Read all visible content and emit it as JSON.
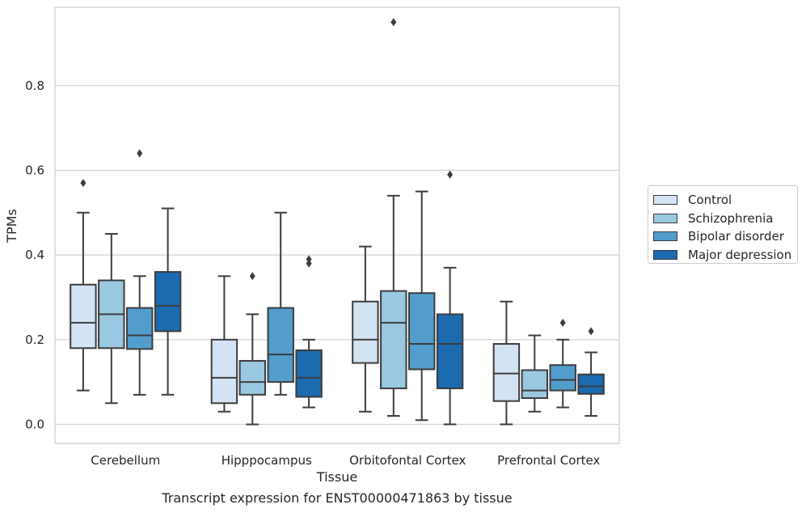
{
  "chart_data": {
    "type": "box",
    "categories": [
      "Cerebellum",
      "Hipppocampus",
      "Orbitofontal Cortex",
      "Prefrontal Cortex"
    ],
    "xlabel": "Tissue",
    "ylabel": "TPMs",
    "ylim": [
      -0.045,
      0.985
    ],
    "yticks": [
      0.0,
      0.2,
      0.4,
      0.6,
      0.8
    ],
    "ytick_labels": [
      "0.0",
      "0.2",
      "0.4",
      "0.6",
      "0.8"
    ],
    "grid": true,
    "legend_position": "right",
    "series": [
      {
        "name": "Control",
        "color": "#d3e3f3",
        "boxes": [
          {
            "whisker_low": 0.08,
            "q1": 0.18,
            "median": 0.24,
            "q3": 0.33,
            "whisker_high": 0.5,
            "outliers": [
              0.57
            ]
          },
          {
            "whisker_low": 0.03,
            "q1": 0.05,
            "median": 0.11,
            "q3": 0.2,
            "whisker_high": 0.35,
            "outliers": []
          },
          {
            "whisker_low": 0.03,
            "q1": 0.145,
            "median": 0.2,
            "q3": 0.29,
            "whisker_high": 0.42,
            "outliers": []
          },
          {
            "whisker_low": 0.0,
            "q1": 0.055,
            "median": 0.12,
            "q3": 0.19,
            "whisker_high": 0.29,
            "outliers": []
          }
        ]
      },
      {
        "name": "Schizophrenia",
        "color": "#9ac8e0",
        "boxes": [
          {
            "whisker_low": 0.05,
            "q1": 0.18,
            "median": 0.26,
            "q3": 0.34,
            "whisker_high": 0.45,
            "outliers": []
          },
          {
            "whisker_low": 0.0,
            "q1": 0.07,
            "median": 0.1,
            "q3": 0.15,
            "whisker_high": 0.26,
            "outliers": [
              0.35
            ]
          },
          {
            "whisker_low": 0.02,
            "q1": 0.085,
            "median": 0.24,
            "q3": 0.315,
            "whisker_high": 0.54,
            "outliers": [
              0.95
            ]
          },
          {
            "whisker_low": 0.03,
            "q1": 0.062,
            "median": 0.08,
            "q3": 0.128,
            "whisker_high": 0.21,
            "outliers": []
          }
        ]
      },
      {
        "name": "Bipolar disorder",
        "color": "#529dcc",
        "boxes": [
          {
            "whisker_low": 0.07,
            "q1": 0.178,
            "median": 0.21,
            "q3": 0.275,
            "whisker_high": 0.35,
            "outliers": [
              0.64
            ]
          },
          {
            "whisker_low": 0.07,
            "q1": 0.1,
            "median": 0.165,
            "q3": 0.275,
            "whisker_high": 0.5,
            "outliers": []
          },
          {
            "whisker_low": 0.01,
            "q1": 0.13,
            "median": 0.19,
            "q3": 0.31,
            "whisker_high": 0.55,
            "outliers": []
          },
          {
            "whisker_low": 0.04,
            "q1": 0.08,
            "median": 0.105,
            "q3": 0.14,
            "whisker_high": 0.2,
            "outliers": [
              0.24
            ]
          }
        ]
      },
      {
        "name": "Major depression",
        "color": "#1c6aaf",
        "boxes": [
          {
            "whisker_low": 0.07,
            "q1": 0.22,
            "median": 0.28,
            "q3": 0.36,
            "whisker_high": 0.51,
            "outliers": []
          },
          {
            "whisker_low": 0.04,
            "q1": 0.065,
            "median": 0.11,
            "q3": 0.175,
            "whisker_high": 0.2,
            "outliers": [
              0.38,
              0.39
            ]
          },
          {
            "whisker_low": 0.0,
            "q1": 0.085,
            "median": 0.19,
            "q3": 0.26,
            "whisker_high": 0.37,
            "outliers": [
              0.59
            ]
          },
          {
            "whisker_low": 0.02,
            "q1": 0.072,
            "median": 0.09,
            "q3": 0.118,
            "whisker_high": 0.17,
            "outliers": [
              0.22
            ]
          }
        ]
      }
    ]
  },
  "caption": "Transcript expression for ENST00000471863 by tissue"
}
